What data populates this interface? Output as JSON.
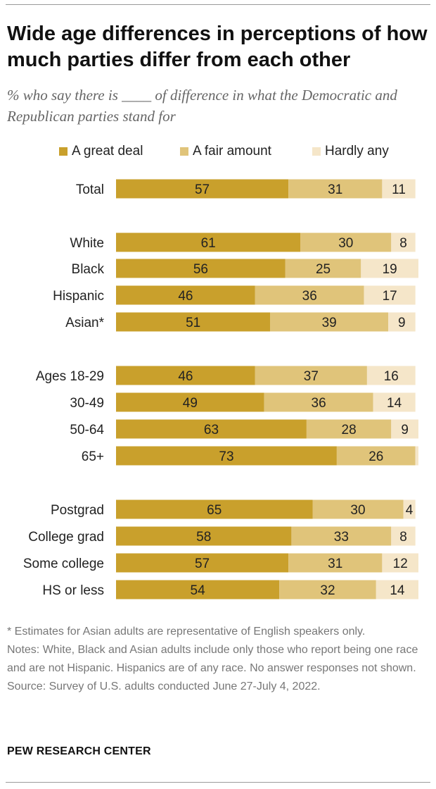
{
  "title": "Wide age differences in perceptions of how much parties differ from each other",
  "subtitle": "% who say there is ____ of difference in what the Democratic and Republican parties stand for",
  "colors": {
    "great_deal": "#c9a02c",
    "fair_amount": "#e0c47a",
    "hardly_any": "#f5e6c9",
    "rule": "#9a9a9a"
  },
  "chart_data": {
    "type": "bar",
    "orientation": "horizontal",
    "stacked": true,
    "xlim": [
      0,
      100
    ],
    "legend_position": "top",
    "categories": [
      "Total",
      "White",
      "Black",
      "Hispanic",
      "Asian*",
      "Ages 18-29",
      "30-49",
      "50-64",
      "65+",
      "Postgrad",
      "College grad",
      "Some college",
      "HS or less"
    ],
    "groups": [
      [
        0
      ],
      [
        1,
        2,
        3,
        4
      ],
      [
        5,
        6,
        7,
        8
      ],
      [
        9,
        10,
        11,
        12
      ]
    ],
    "series": [
      {
        "name": "A great deal",
        "values": [
          57,
          61,
          56,
          46,
          51,
          46,
          49,
          63,
          73,
          65,
          58,
          57,
          54
        ]
      },
      {
        "name": "A fair amount",
        "values": [
          31,
          30,
          25,
          36,
          39,
          37,
          36,
          28,
          26,
          30,
          33,
          31,
          32
        ]
      },
      {
        "name": "Hardly any",
        "values": [
          11,
          8,
          19,
          17,
          9,
          16,
          14,
          9,
          1,
          4,
          8,
          12,
          14
        ]
      }
    ],
    "labels": [
      [
        "57",
        "61",
        "56",
        "46",
        "51",
        "46",
        "49",
        "63",
        "73",
        "65",
        "58",
        "57",
        "54"
      ],
      [
        "31",
        "30",
        "25",
        "36",
        "39",
        "37",
        "36",
        "28",
        "26",
        "30",
        "33",
        "31",
        "32"
      ],
      [
        "11",
        "8",
        "19",
        "17",
        "9",
        "16",
        "14",
        "9",
        "",
        "4",
        "8",
        "12",
        "14"
      ]
    ]
  },
  "notes": {
    "asterisk": "* Estimates for Asian adults are representative of English speakers only.",
    "notes": "Notes: White, Black and Asian adults include only those who report being one race and are not Hispanic. Hispanics are of any race. No answer responses not shown.",
    "source": "Source: Survey of U.S. adults conducted June 27-July 4, 2022."
  },
  "org": "PEW RESEARCH CENTER"
}
